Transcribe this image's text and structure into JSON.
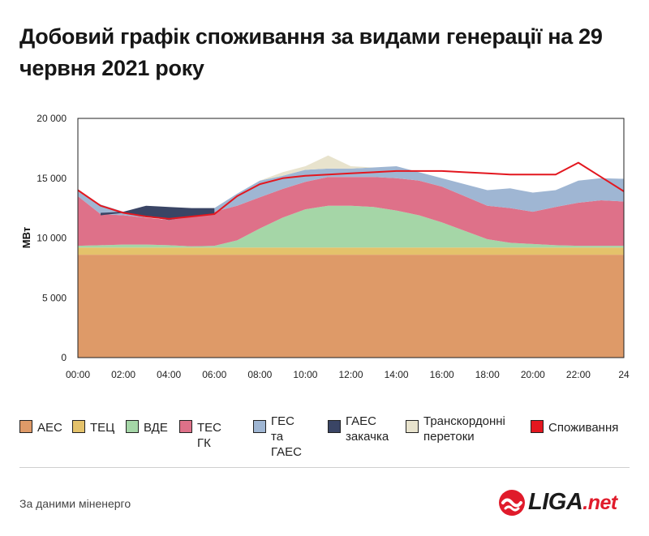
{
  "title": "Добовий графік споживання за видами генерації на 29 червня 2021 року",
  "source": "За даними міненерго",
  "logo": {
    "name": "LIGA",
    "tld": ".net"
  },
  "chart_data": {
    "type": "area",
    "stacked": true,
    "ylabel": "МВт",
    "ylim": [
      0,
      20000
    ],
    "yticks": [
      0,
      5000,
      10000,
      15000,
      20000
    ],
    "ytick_labels": [
      "0",
      "5 000",
      "10 000",
      "15 000",
      "20 000"
    ],
    "x": [
      0,
      1,
      2,
      3,
      4,
      5,
      6,
      7,
      8,
      9,
      10,
      11,
      12,
      13,
      14,
      15,
      16,
      17,
      18,
      19,
      20,
      21,
      22,
      23,
      24
    ],
    "xlim": [
      0,
      24
    ],
    "xticks": [
      0,
      2,
      4,
      6,
      8,
      10,
      12,
      14,
      16,
      18,
      20,
      22,
      24
    ],
    "xtick_labels": [
      "00:00",
      "02:00",
      "04:00",
      "06:00",
      "08:00",
      "10:00",
      "12:00",
      "14:00",
      "16:00",
      "18:00",
      "20:00",
      "22:00",
      "24"
    ],
    "grid": false,
    "legend_position": "bottom",
    "series": [
      {
        "name": "АЕС",
        "color": "#de9a68",
        "values": [
          8600,
          8600,
          8600,
          8600,
          8600,
          8600,
          8600,
          8600,
          8600,
          8600,
          8600,
          8600,
          8600,
          8600,
          8600,
          8600,
          8600,
          8600,
          8600,
          8600,
          8600,
          8600,
          8600,
          8600,
          8600
        ]
      },
      {
        "name": "ТЕЦ",
        "color": "#e4c26b",
        "values": [
          600,
          600,
          600,
          600,
          600,
          600,
          600,
          600,
          600,
          600,
          600,
          600,
          600,
          600,
          600,
          600,
          600,
          600,
          600,
          600,
          600,
          600,
          600,
          600,
          600
        ]
      },
      {
        "name": "ВДЕ",
        "color": "#a5d6a7",
        "values": [
          150,
          200,
          250,
          250,
          200,
          100,
          150,
          600,
          1600,
          2500,
          3200,
          3500,
          3500,
          3400,
          3100,
          2700,
          2100,
          1400,
          700,
          400,
          300,
          200,
          150,
          150,
          150
        ]
      },
      {
        "name": "ТЕС ГК",
        "color": "#de7189",
        "values": [
          4150,
          2600,
          2450,
          2250,
          2100,
          2500,
          2850,
          2900,
          2600,
          2400,
          2300,
          2400,
          2400,
          2500,
          2700,
          2900,
          3000,
          2900,
          2800,
          2900,
          2700,
          3200,
          3600,
          3800,
          3700
        ]
      },
      {
        "name": "ГЕС\nта ГАЕС",
        "color": "#9fb6d3",
        "values": [
          400,
          800,
          300,
          0,
          0,
          100,
          300,
          1000,
          1400,
          1100,
          1000,
          700,
          700,
          800,
          1000,
          700,
          700,
          1000,
          1300,
          1650,
          1600,
          1400,
          1850,
          1850,
          1900
        ]
      },
      {
        "name": "ГАЕС\nзакачка",
        "color": "#3a4565",
        "values": [
          0,
          0,
          0,
          0,
          0,
          0,
          0,
          0,
          0,
          0,
          0,
          0,
          0,
          0,
          0,
          0,
          0,
          0,
          0,
          0,
          0,
          0,
          0,
          0,
          0
        ]
      },
      {
        "name": "Транскордонні\nперетоки",
        "color": "#e8e3cd",
        "values": [
          0,
          0,
          0,
          0,
          0,
          0,
          0,
          0,
          0,
          300,
          300,
          1100,
          200,
          0,
          0,
          0,
          0,
          0,
          0,
          0,
          0,
          0,
          0,
          0,
          0
        ]
      }
    ],
    "pumping": {
      "name": "ГАЕС закачка",
      "x": [
        1,
        2,
        3,
        4,
        5,
        6
      ],
      "top": [
        12100,
        12200,
        12700,
        12600,
        12500,
        12500
      ],
      "bottom": [
        11900,
        12100,
        11800,
        11500,
        11800,
        12000
      ]
    },
    "consumption": {
      "name": "Споживання",
      "color": "#e3171f",
      "values": [
        14000,
        12700,
        12100,
        11800,
        11600,
        11800,
        12000,
        13500,
        14500,
        15000,
        15200,
        15300,
        15400,
        15500,
        15600,
        15600,
        15600,
        15500,
        15400,
        15300,
        15300,
        15300,
        16300,
        15100,
        13900
      ]
    }
  }
}
